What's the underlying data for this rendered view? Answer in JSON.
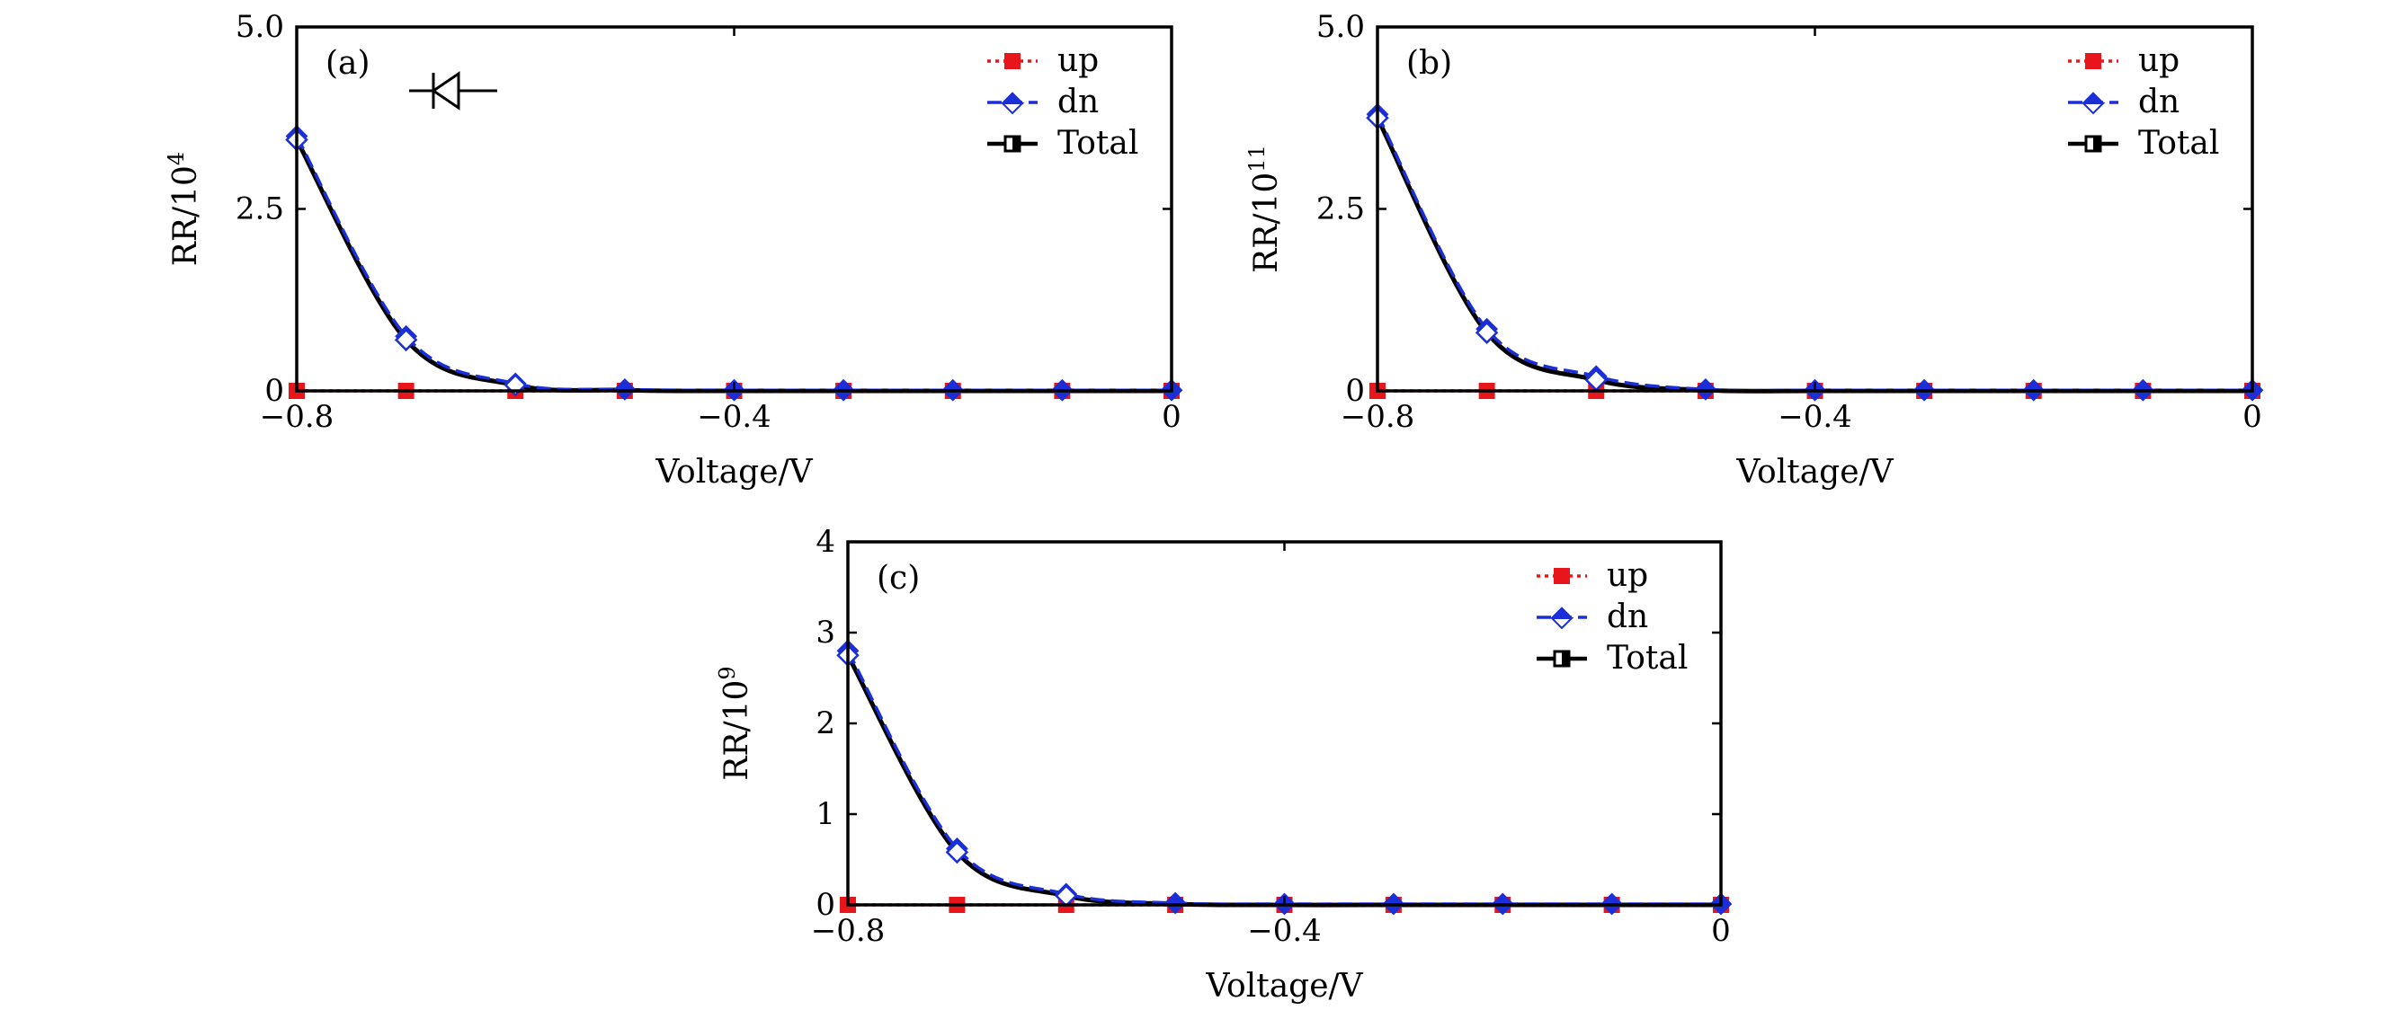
{
  "colors": {
    "up": "#e8161b",
    "dn": "#1a2fd8",
    "total": "#000000"
  },
  "chart_data": [
    {
      "type": "line",
      "panel_label": "(a)",
      "xlabel": "Voltage/V",
      "ylabel_base": "RR/10",
      "ylabel_exp": "4",
      "xlim": [
        -0.8,
        0
      ],
      "ylim": [
        0,
        5.0
      ],
      "xticks": [
        -0.8,
        -0.4,
        0
      ],
      "xtick_labels": [
        "−0.8",
        "−0.4",
        "0"
      ],
      "yticks": [
        0,
        2.5,
        5.0
      ],
      "ytick_labels": [
        "0",
        "2.5",
        "5.0"
      ],
      "x": [
        -0.8,
        -0.7,
        -0.6,
        -0.5,
        -0.4,
        -0.3,
        -0.2,
        -0.1,
        0
      ],
      "series": [
        {
          "name": "up",
          "values": [
            0,
            0,
            0,
            0,
            0,
            0,
            0,
            0,
            0
          ]
        },
        {
          "name": "dn",
          "values": [
            3.5,
            0.75,
            0.1,
            0.02,
            0.01,
            0.01,
            0.01,
            0.01,
            0.01
          ]
        },
        {
          "name": "Total",
          "values": [
            3.45,
            0.7,
            0.08,
            0.01,
            0,
            0,
            0,
            0,
            0
          ]
        }
      ],
      "legend": [
        "up",
        "dn",
        "Total"
      ],
      "legend_position": "top-right",
      "annotation": "diode-symbol"
    },
    {
      "type": "line",
      "panel_label": "(b)",
      "xlabel": "Voltage/V",
      "ylabel_base": "RR/10",
      "ylabel_exp": "11",
      "xlim": [
        -0.8,
        0
      ],
      "ylim": [
        0,
        5.0
      ],
      "xticks": [
        -0.8,
        -0.4,
        0
      ],
      "xtick_labels": [
        "−0.8",
        "−0.4",
        "0"
      ],
      "yticks": [
        0,
        2.5,
        5.0
      ],
      "ytick_labels": [
        "0",
        "2.5",
        "5.0"
      ],
      "x": [
        -0.8,
        -0.7,
        -0.6,
        -0.5,
        -0.4,
        -0.3,
        -0.2,
        -0.1,
        0
      ],
      "series": [
        {
          "name": "up",
          "values": [
            0,
            0,
            0,
            0,
            0,
            0,
            0,
            0,
            0
          ]
        },
        {
          "name": "dn",
          "values": [
            3.8,
            0.85,
            0.2,
            0.02,
            0.01,
            0.01,
            0.01,
            0.01,
            0.01
          ]
        },
        {
          "name": "Total",
          "values": [
            3.75,
            0.8,
            0.15,
            0.01,
            0,
            0,
            0,
            0,
            0
          ]
        }
      ],
      "legend": [
        "up",
        "dn",
        "Total"
      ],
      "legend_position": "top-right"
    },
    {
      "type": "line",
      "panel_label": "(c)",
      "xlabel": "Voltage/V",
      "ylabel_base": "RR/10",
      "ylabel_exp": "9",
      "xlim": [
        -0.8,
        0
      ],
      "ylim": [
        0,
        4
      ],
      "xticks": [
        -0.8,
        -0.4,
        0
      ],
      "xtick_labels": [
        "−0.8",
        "−0.4",
        "0"
      ],
      "yticks": [
        0,
        1,
        2,
        3,
        4
      ],
      "ytick_labels": [
        "0",
        "1",
        "2",
        "3",
        "4"
      ],
      "x": [
        -0.8,
        -0.7,
        -0.6,
        -0.5,
        -0.4,
        -0.3,
        -0.2,
        -0.1,
        0
      ],
      "series": [
        {
          "name": "up",
          "values": [
            0,
            0,
            0,
            0,
            0,
            0,
            0,
            0,
            0
          ]
        },
        {
          "name": "dn",
          "values": [
            2.8,
            0.62,
            0.12,
            0.02,
            0.01,
            0.01,
            0.01,
            0.01,
            0.01
          ]
        },
        {
          "name": "Total",
          "values": [
            2.75,
            0.58,
            0.1,
            0.01,
            0,
            0,
            0,
            0,
            0
          ]
        }
      ],
      "legend": [
        "up",
        "dn",
        "Total"
      ],
      "legend_position": "top-right"
    }
  ]
}
